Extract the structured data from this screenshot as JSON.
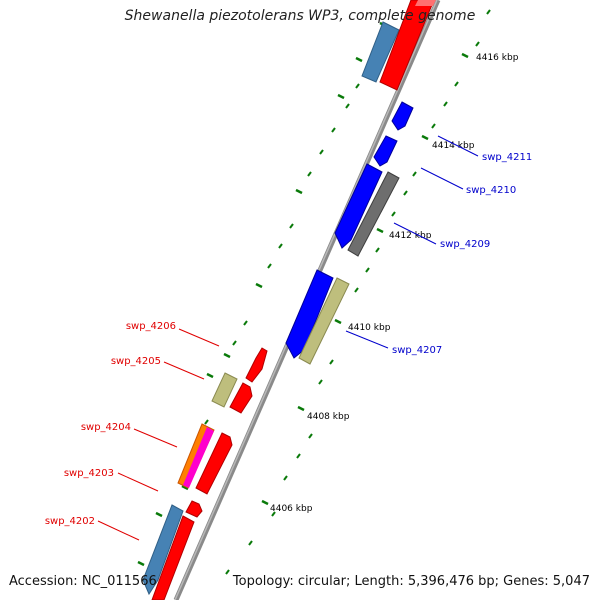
{
  "title": "Shewanella piezotolerans WP3, complete genome",
  "accession": "Accession: NC_011566",
  "topology": "Topology: circular; Length: 5,396,476 bp; Genes: 5,047",
  "colors": {
    "backbone": "#8a8a8a",
    "cds_forward": "#ff0000",
    "cds_reverse": "#0000ff",
    "trna": "#bebe7d",
    "rrna": "#4682b4",
    "pseudo": "#6e6e6e",
    "tick": "#0a7a0a",
    "label_forward": "#e00000",
    "label_reverse": "#0000cc"
  },
  "scale_labels": [
    "4406 kbp",
    "4408 kbp",
    "4410 kbp",
    "4412 kbp",
    "4414 kbp",
    "4416 kbp"
  ],
  "gene_labels": {
    "forward": [
      "swp_4206",
      "swp_4205",
      "swp_4204",
      "swp_4203",
      "swp_4202"
    ],
    "reverse": [
      "swp_4211",
      "swp_4210",
      "swp_4209",
      "swp_4207"
    ]
  }
}
